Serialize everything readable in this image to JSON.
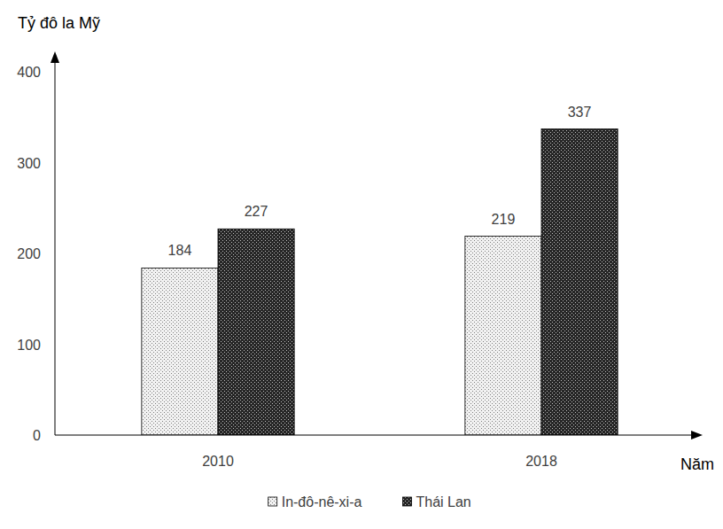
{
  "chart_data": {
    "type": "bar",
    "y_label": "Tỷ đô la Mỹ",
    "x_label": "Năm",
    "categories": [
      "2010",
      "2018"
    ],
    "series": [
      {
        "name": "In-đô-nê-xi-a",
        "color": "#f2f2f2",
        "values": [
          184,
          219
        ]
      },
      {
        "name": "Thái Lan",
        "color": "#262626",
        "values": [
          227,
          337
        ]
      }
    ],
    "ylim": [
      0,
      400
    ],
    "yticks": [
      0,
      100,
      200,
      300,
      400
    ],
    "grid": false,
    "legend": "bottom",
    "data_labels": true
  }
}
